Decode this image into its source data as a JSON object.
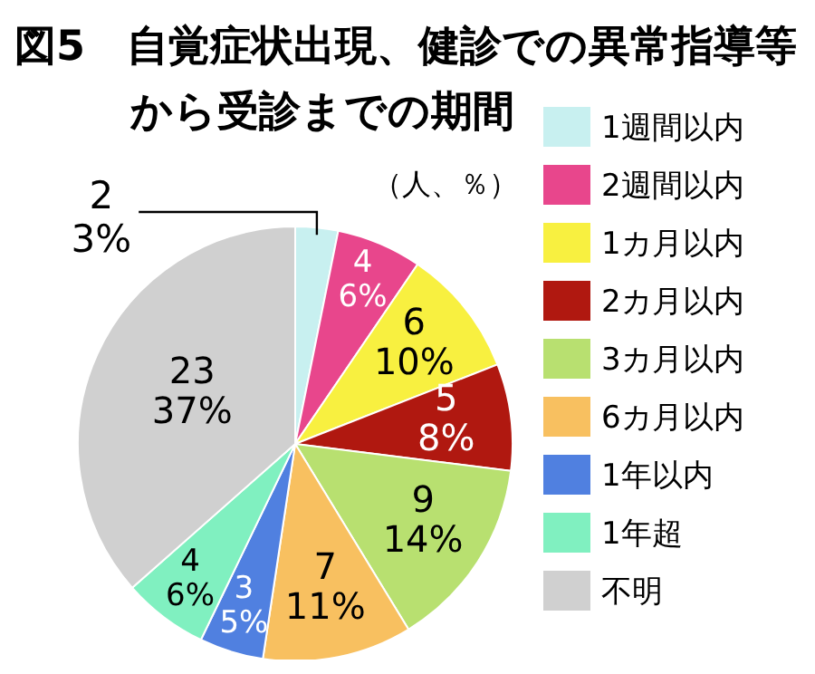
{
  "chart_data": {
    "type": "pie",
    "title": "図5　自覚症状出現、健診での異常指導等から受診までの期間",
    "subtitle": "（人、％）",
    "categories": [
      "1週間以内",
      "2週間以内",
      "1カ月以内",
      "2カ月以内",
      "3カ月以内",
      "6カ月以内",
      "1年以内",
      "1年超",
      "不明"
    ],
    "values": [
      2,
      4,
      6,
      5,
      9,
      7,
      3,
      4,
      23
    ],
    "value_labels": [
      "2\n3%",
      "4\n6%",
      "6\n10%",
      "5\n8%",
      "9\n14%",
      "7\n11%",
      "3\n5%",
      "4\n6%",
      "23\n37%"
    ],
    "colors": [
      "#c8f0f0",
      "#e8468c",
      "#f8f040",
      "#b01810",
      "#b8e070",
      "#f8c060",
      "#5080e0",
      "#80f0c0",
      "#d0d0d0"
    ],
    "legend": "right"
  }
}
